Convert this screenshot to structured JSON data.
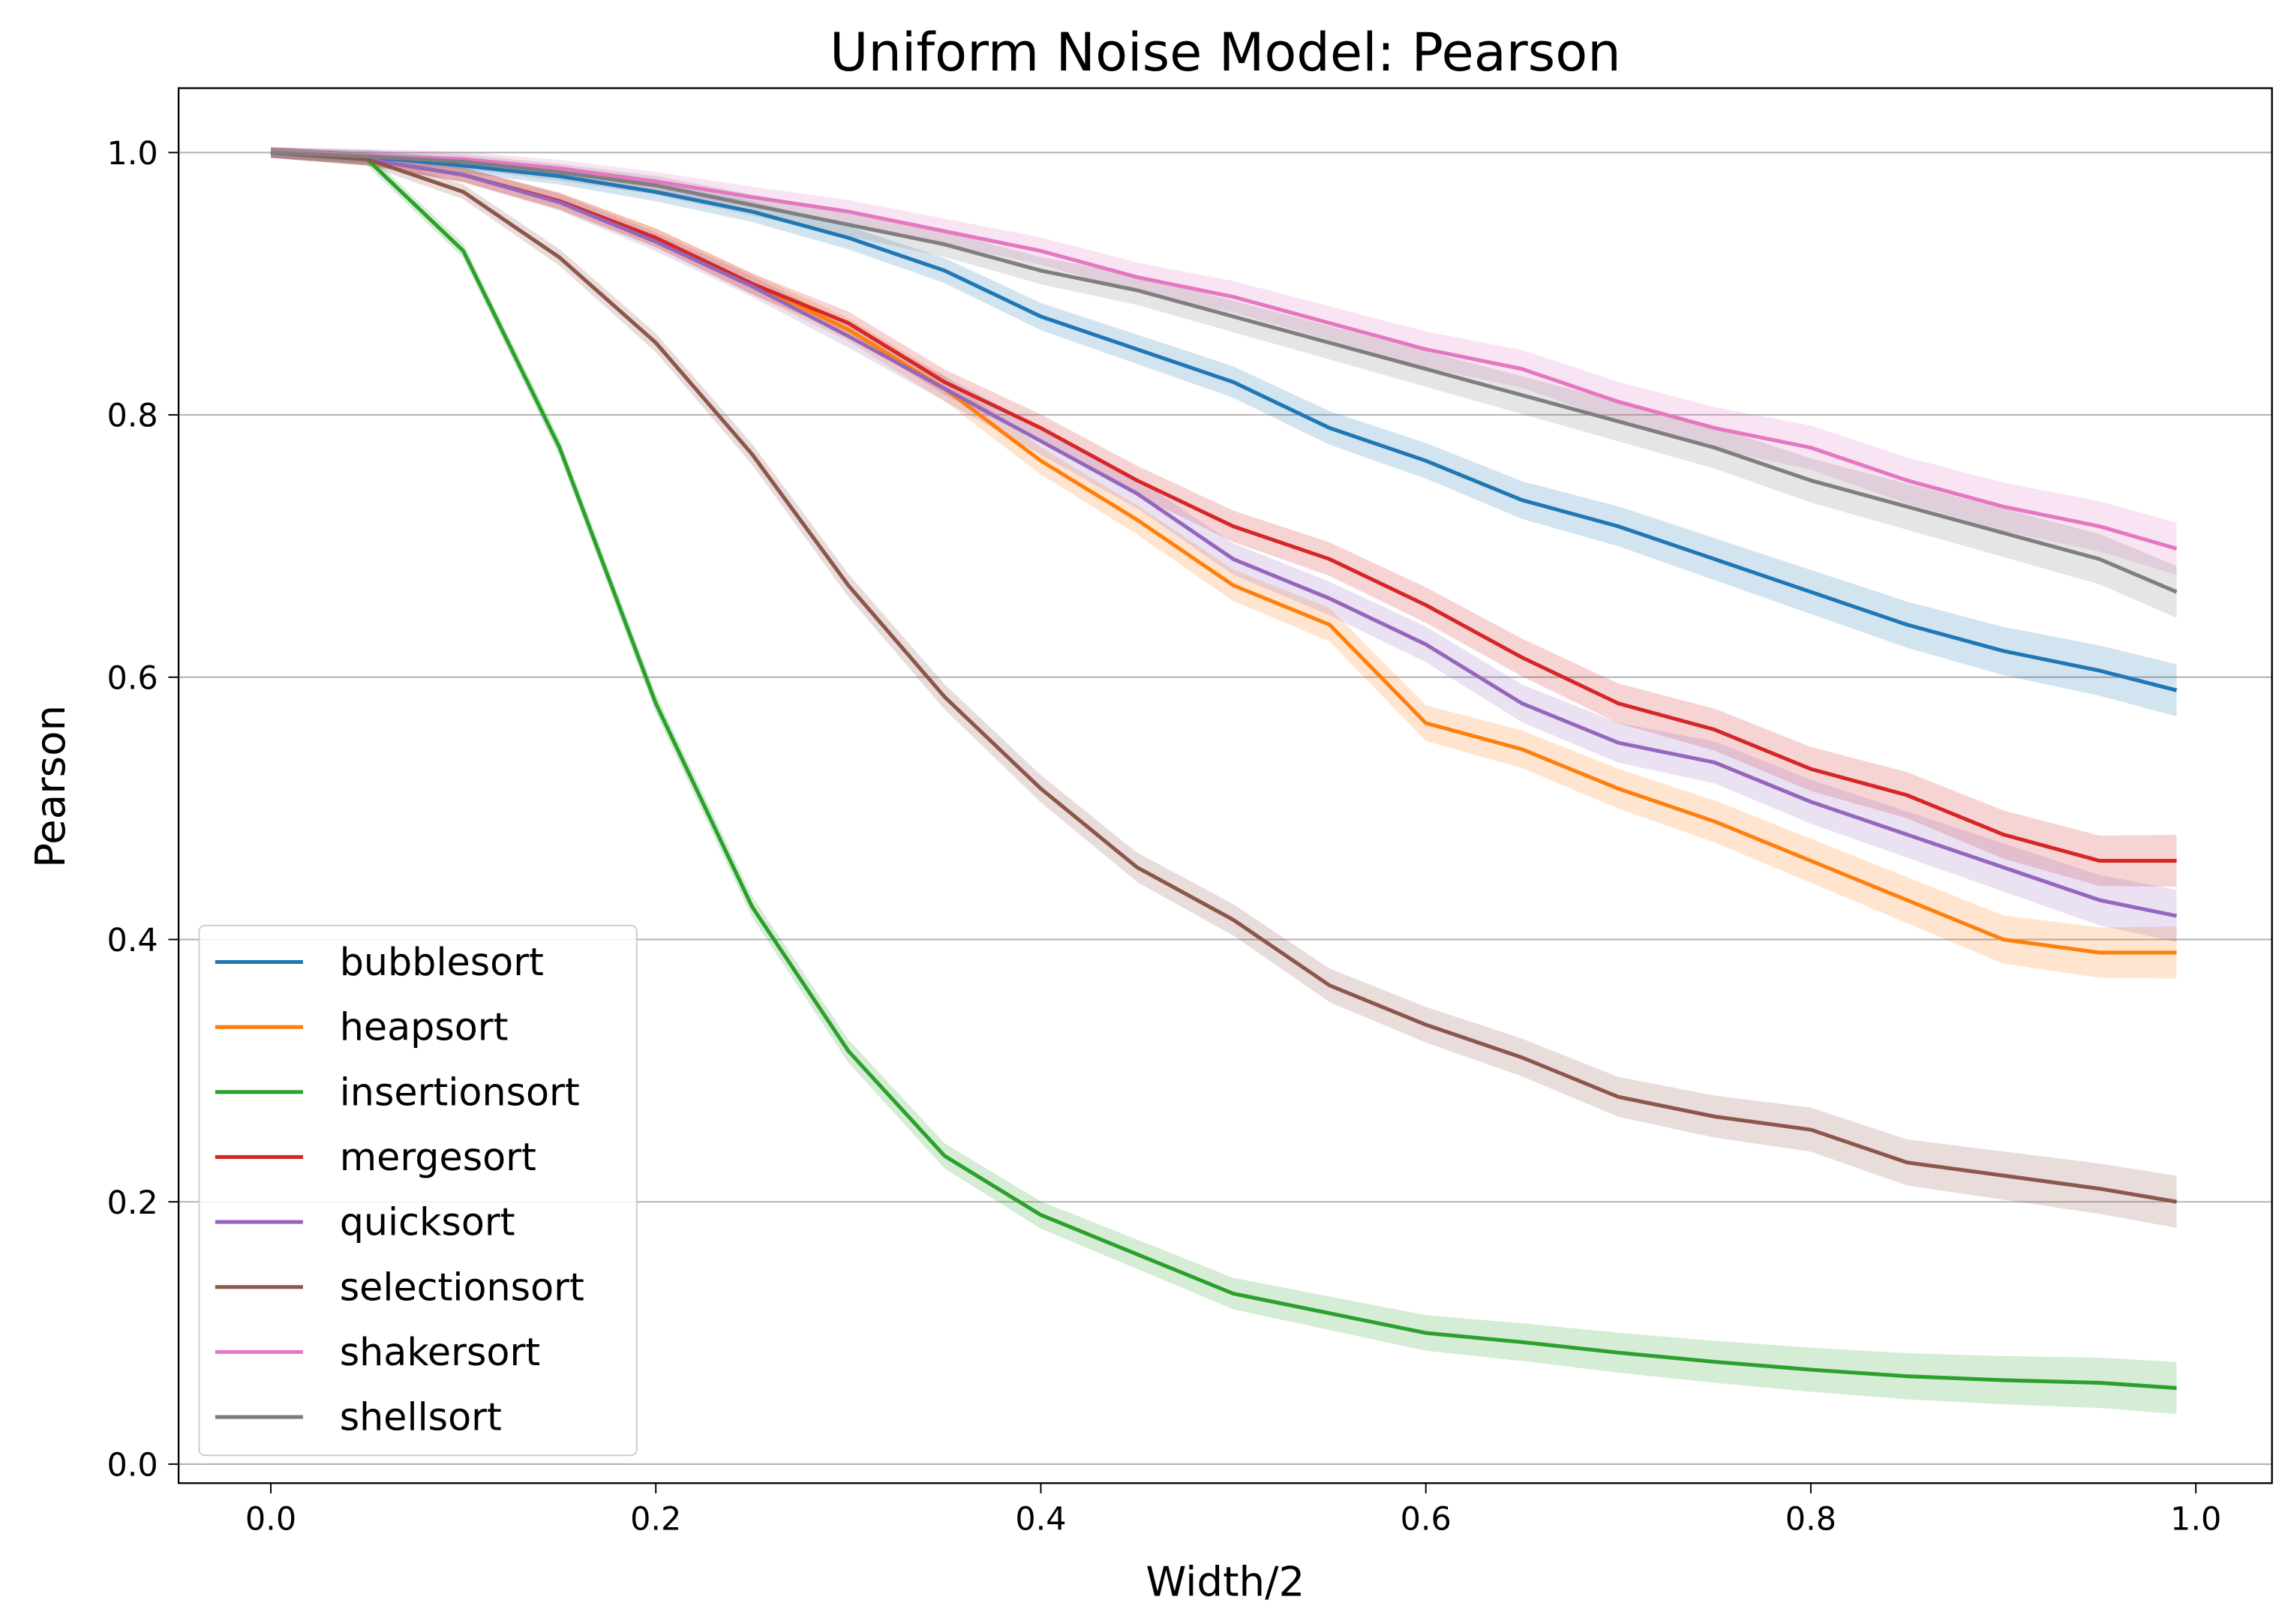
{
  "chart_data": {
    "type": "line",
    "title": "Uniform Noise Model: Pearson",
    "xlabel": "Width/2",
    "ylabel": "Pearson",
    "xlim": [
      -0.05,
      1.04
    ],
    "ylim": [
      -0.015,
      1.05
    ],
    "xticks": [
      "0.0",
      "0.2",
      "0.4",
      "0.6",
      "0.8",
      "1.0"
    ],
    "yticks": [
      "0.0",
      "0.2",
      "0.4",
      "0.6",
      "0.8",
      "1.0"
    ],
    "grid": "horizontal",
    "legend": "lower-left",
    "x": [
      0,
      0.05,
      0.1,
      0.15,
      0.2,
      0.25,
      0.3,
      0.35,
      0.4,
      0.45,
      0.5,
      0.55,
      0.6,
      0.65,
      0.7,
      0.75,
      0.8,
      0.85,
      0.9,
      0.95,
      0.99
    ],
    "series": [
      {
        "name": "bubblesort",
        "color": "#1f77b4",
        "values": [
          1,
          0.997,
          0.99,
          0.982,
          0.97,
          0.955,
          0.935,
          0.91,
          0.875,
          0.85,
          0.825,
          0.79,
          0.765,
          0.735,
          0.715,
          0.69,
          0.665,
          0.64,
          0.62,
          0.605,
          0.59
        ]
      },
      {
        "name": "heapsort",
        "color": "#ff7f0e",
        "values": [
          1,
          0.995,
          0.983,
          0.963,
          0.935,
          0.9,
          0.865,
          0.82,
          0.765,
          0.72,
          0.67,
          0.64,
          0.565,
          0.545,
          0.515,
          0.49,
          0.46,
          0.43,
          0.4,
          0.39,
          0.39
        ]
      },
      {
        "name": "insertionsort",
        "color": "#2ca02c",
        "values": [
          1,
          0.995,
          0.925,
          0.775,
          0.58,
          0.425,
          0.315,
          0.235,
          0.19,
          0.16,
          0.13,
          0.115,
          0.1,
          0.093,
          0.085,
          0.078,
          0.072,
          0.067,
          0.064,
          0.062,
          0.058
        ]
      },
      {
        "name": "mergesort",
        "color": "#d62728",
        "values": [
          1,
          0.995,
          0.983,
          0.963,
          0.935,
          0.9,
          0.87,
          0.825,
          0.79,
          0.75,
          0.715,
          0.69,
          0.655,
          0.615,
          0.58,
          0.56,
          0.53,
          0.51,
          0.48,
          0.46,
          0.46
        ]
      },
      {
        "name": "quicksort",
        "color": "#9467bd",
        "values": [
          1,
          0.995,
          0.983,
          0.962,
          0.932,
          0.898,
          0.86,
          0.82,
          0.78,
          0.74,
          0.69,
          0.66,
          0.625,
          0.58,
          0.55,
          0.535,
          0.505,
          0.48,
          0.455,
          0.43,
          0.418
        ]
      },
      {
        "name": "selectionsort",
        "color": "#8c564b",
        "values": [
          1,
          0.995,
          0.97,
          0.92,
          0.855,
          0.77,
          0.67,
          0.585,
          0.515,
          0.455,
          0.415,
          0.365,
          0.335,
          0.31,
          0.28,
          0.265,
          0.255,
          0.23,
          0.22,
          0.21,
          0.2
        ]
      },
      {
        "name": "shakersort",
        "color": "#e377c2",
        "values": [
          1,
          0.998,
          0.995,
          0.988,
          0.978,
          0.966,
          0.955,
          0.94,
          0.925,
          0.905,
          0.89,
          0.87,
          0.85,
          0.835,
          0.81,
          0.79,
          0.775,
          0.75,
          0.73,
          0.715,
          0.698
        ]
      },
      {
        "name": "shellsort",
        "color": "#7f7f7f",
        "values": [
          1,
          0.997,
          0.993,
          0.985,
          0.975,
          0.96,
          0.945,
          0.93,
          0.91,
          0.895,
          0.875,
          0.855,
          0.835,
          0.815,
          0.795,
          0.775,
          0.75,
          0.73,
          0.71,
          0.69,
          0.665
        ]
      }
    ]
  }
}
